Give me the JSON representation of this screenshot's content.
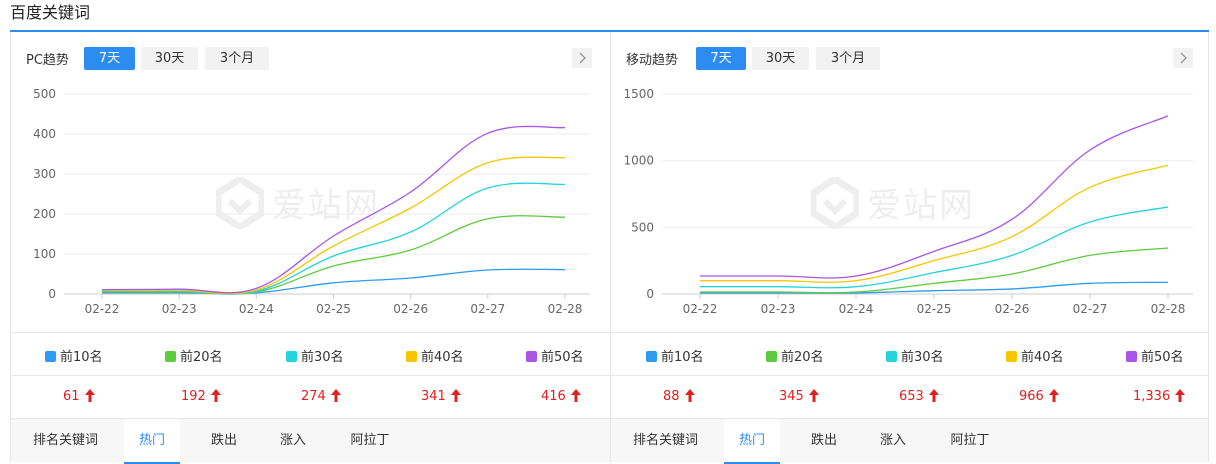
{
  "page": {
    "title": "百度关键词"
  },
  "panels": [
    {
      "label": "PC趋势",
      "ranges": [
        "7天",
        "30天",
        "3个月"
      ],
      "active_range": "7天",
      "watermark": "爱站网",
      "chart_data": {
        "type": "line",
        "x": [
          "02-22",
          "02-23",
          "02-24",
          "02-25",
          "02-26",
          "02-27",
          "02-28"
        ],
        "ylim": [
          0,
          500
        ],
        "yticks": [
          0,
          100,
          200,
          300,
          400,
          500
        ],
        "grid": true,
        "series": [
          {
            "name": "前10名",
            "color": "#2d9bf0",
            "values": [
              3,
              3,
              3,
              28,
              40,
              60,
              61
            ]
          },
          {
            "name": "前20名",
            "color": "#5ccb3c",
            "values": [
              5,
              5,
              5,
              70,
              110,
              188,
              192
            ]
          },
          {
            "name": "前30名",
            "color": "#25d3dc",
            "values": [
              7,
              7,
              7,
              95,
              155,
              265,
              274
            ]
          },
          {
            "name": "前40名",
            "color": "#f7c600",
            "values": [
              9,
              9,
              10,
              120,
              215,
              328,
              341
            ]
          },
          {
            "name": "前50名",
            "color": "#a855e6",
            "values": [
              11,
              12,
              14,
              145,
              255,
              402,
              416
            ]
          }
        ]
      },
      "totals": [
        "61",
        "192",
        "274",
        "341",
        "416"
      ],
      "tabs": [
        "排名关键词",
        "热门",
        "跌出",
        "涨入",
        "阿拉丁"
      ],
      "active_tab": "热门"
    },
    {
      "label": "移动趋势",
      "ranges": [
        "7天",
        "30天",
        "3个月"
      ],
      "active_range": "7天",
      "watermark": "爱站网",
      "chart_data": {
        "type": "line",
        "x": [
          "02-22",
          "02-23",
          "02-24",
          "02-25",
          "02-26",
          "02-27",
          "02-28"
        ],
        "ylim": [
          0,
          1500
        ],
        "yticks": [
          0,
          500,
          1000,
          1500
        ],
        "grid": true,
        "series": [
          {
            "name": "前10名",
            "color": "#2d9bf0",
            "values": [
              8,
              8,
              8,
              25,
              38,
              80,
              88
            ]
          },
          {
            "name": "前20名",
            "color": "#5ccb3c",
            "values": [
              15,
              15,
              15,
              80,
              150,
              290,
              345
            ]
          },
          {
            "name": "前30名",
            "color": "#25d3dc",
            "values": [
              55,
              55,
              55,
              160,
              290,
              540,
              653
            ]
          },
          {
            "name": "前40名",
            "color": "#f7c600",
            "values": [
              100,
              100,
              100,
              250,
              430,
              800,
              966
            ]
          },
          {
            "name": "前50名",
            "color": "#a855e6",
            "values": [
              135,
              135,
              135,
              320,
              560,
              1080,
              1336
            ]
          }
        ]
      },
      "totals": [
        "88",
        "345",
        "653",
        "966",
        "1,336"
      ],
      "tabs": [
        "排名关键词",
        "热门",
        "跌出",
        "涨入",
        "阿拉丁"
      ],
      "active_tab": "热门"
    }
  ]
}
